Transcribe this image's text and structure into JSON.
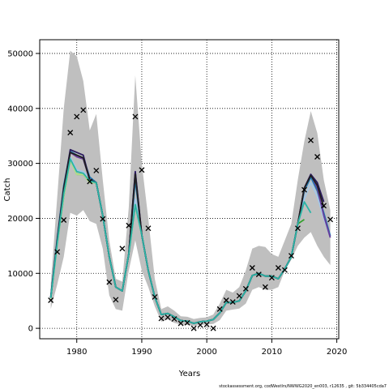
{
  "chart_data": {
    "type": "line",
    "xlabel": "Years",
    "ylabel": "Catch",
    "xlim": [
      1974.3,
      2020.3
    ],
    "ylim": [
      -1900,
      52500
    ],
    "xticks": [
      1980,
      1990,
      2000,
      2010,
      2020
    ],
    "yticks": [
      0,
      10000,
      20000,
      30000,
      40000,
      50000
    ],
    "grid": true,
    "footer": "stockassessment.org, codWestIrs/NWWG2020_en003, r12635 , git: 5b334405cda7",
    "band": {
      "x": [
        1976,
        1977,
        1978,
        1979,
        1980,
        1981,
        1982,
        1983,
        1984,
        1985,
        1986,
        1987,
        1988,
        1989,
        1990,
        1991,
        1992,
        1993,
        1994,
        1995,
        1996,
        1997,
        1998,
        1999,
        2000,
        2001,
        2002,
        2003,
        2004,
        2005,
        2006,
        2007,
        2008,
        2009,
        2010,
        2011,
        2012,
        2013,
        2014,
        2015,
        2016,
        2017,
        2018,
        2019
      ],
      "upper": [
        8000,
        24000,
        40000,
        50500,
        49500,
        45000,
        36000,
        39000,
        27000,
        16000,
        9000,
        8500,
        22000,
        46000,
        30000,
        20000,
        9000,
        3500,
        4000,
        3200,
        2200,
        2100,
        1700,
        1900,
        2000,
        2500,
        4500,
        7000,
        6500,
        7500,
        10500,
        14500,
        15000,
        14800,
        13500,
        13000,
        16000,
        19000,
        27000,
        34000,
        39500,
        35500,
        27000,
        21500
      ],
      "lower": [
        3500,
        8000,
        13000,
        21000,
        20500,
        21500,
        19500,
        19000,
        14500,
        6000,
        3500,
        3200,
        10500,
        16000,
        10500,
        7500,
        4000,
        1200,
        1600,
        1000,
        700,
        600,
        400,
        600,
        700,
        800,
        1500,
        3200,
        3400,
        3600,
        4500,
        7000,
        7500,
        7000,
        7000,
        7500,
        10500,
        12500,
        15000,
        16500,
        17500,
        15000,
        13000,
        11500
      ]
    },
    "series": [
      {
        "color": "#a3c7e8",
        "values": [
          5500,
          15500,
          24500,
          31200,
          28800,
          28500,
          27500,
          26500,
          20500,
          13000,
          7500,
          6800,
          13500,
          23500,
          17000,
          10500,
          5700,
          2500,
          2700,
          2100,
          1400,
          1300,
          900,
          1200,
          1300,
          1600,
          2800,
          4700,
          4700,
          5000,
          6800,
          9600,
          10000,
          9500,
          9500,
          9000,
          10800,
          13000,
          19000,
          23500,
          26500,
          24000,
          20000,
          16500
        ]
      },
      {
        "color": "#1f78b4",
        "values": [
          5800,
          16500,
          26000,
          32200,
          31500,
          31000,
          27500,
          26500,
          20500,
          13000,
          7500,
          6800,
          13500,
          27000,
          17000,
          10500,
          5700,
          2500,
          2700,
          2100,
          1400,
          1300,
          900,
          1200,
          1300,
          1600,
          2800,
          4700,
          4700,
          5000,
          6800,
          9600,
          10000,
          9500,
          9500,
          9000,
          10800,
          13000,
          19000,
          25000,
          27500,
          25000,
          21000,
          16800
        ]
      },
      {
        "color": "#33a02c",
        "values": [
          5500,
          15500,
          24000,
          30700,
          28000,
          28000,
          26500,
          26500,
          20500,
          13000,
          7500,
          6800,
          13500,
          22500,
          17000,
          10500,
          5700,
          2500,
          2700,
          2100,
          1400,
          1300,
          900,
          1200,
          1300,
          1600,
          2800,
          4700,
          4700,
          5000,
          6800,
          9600,
          10000,
          9500,
          9500,
          9000,
          10800,
          13000,
          19000,
          19800,
          null,
          null,
          null,
          null
        ]
      },
      {
        "color": "#b2df8a",
        "values": [
          5400,
          15300,
          24000,
          30500,
          28000,
          28000,
          26500,
          26500,
          20500,
          13000,
          7500,
          6800,
          13500,
          22500,
          17000,
          10500,
          5700,
          2500,
          2700,
          2100,
          1400,
          1300,
          900,
          1200,
          1300,
          1600,
          2800,
          4700,
          4700,
          5000,
          6800,
          9600,
          10000,
          9500,
          9500,
          9000,
          10800,
          13000,
          19000,
          null,
          null,
          null,
          null,
          null
        ]
      },
      {
        "color": "#6a3d9a",
        "values": [
          5600,
          16000,
          25500,
          32000,
          31200,
          30800,
          27000,
          26500,
          20500,
          13000,
          7500,
          6800,
          13500,
          28500,
          17000,
          10500,
          5700,
          2500,
          2700,
          2100,
          1400,
          1300,
          900,
          1200,
          1300,
          1600,
          2800,
          4700,
          4700,
          5000,
          6800,
          9600,
          10000,
          9500,
          9500,
          9000,
          10800,
          13000,
          19000,
          25500,
          28000,
          25500,
          20500,
          16500
        ]
      },
      {
        "color": "#2a1a5e",
        "values": [
          5600,
          16000,
          25500,
          32500,
          32000,
          31500,
          27000,
          26500,
          20500,
          13000,
          7500,
          6800,
          13500,
          28500,
          17000,
          10500,
          5700,
          2500,
          2700,
          2100,
          1400,
          1300,
          900,
          1200,
          1300,
          1600,
          2800,
          4700,
          4700,
          5000,
          6800,
          9600,
          10000,
          9500,
          9500,
          9000,
          10800,
          13000,
          19000,
          25500,
          28000,
          26500,
          23000,
          null
        ]
      },
      {
        "color": "#1f1f1f",
        "values": [
          5600,
          16000,
          25500,
          32000,
          31500,
          31000,
          27000,
          26500,
          20500,
          13000,
          7500,
          6800,
          13500,
          28000,
          17000,
          10500,
          5700,
          2500,
          2700,
          2100,
          1400,
          1300,
          900,
          1200,
          1300,
          1600,
          2800,
          4700,
          4700,
          5000,
          6800,
          9600,
          10000,
          9500,
          9500,
          9000,
          10800,
          13000,
          19000,
          25500,
          27800,
          26000,
          22000,
          null
        ]
      },
      {
        "color": "#2ab3a6",
        "values": [
          5500,
          15500,
          24500,
          30800,
          28500,
          28200,
          26800,
          26500,
          20500,
          13000,
          7500,
          6800,
          13500,
          22500,
          17000,
          10500,
          5700,
          2500,
          2700,
          2100,
          1400,
          1300,
          900,
          1200,
          1300,
          1600,
          2800,
          4700,
          4700,
          5000,
          6800,
          9600,
          10000,
          9500,
          9500,
          9000,
          10800,
          13000,
          19000,
          23000,
          21000,
          null,
          null,
          null
        ]
      }
    ],
    "observations": {
      "x": [
        1976,
        1977,
        1978,
        1979,
        1980,
        1981,
        1982,
        1983,
        1984,
        1985,
        1986,
        1987,
        1988,
        1989,
        1990,
        1991,
        1992,
        1993,
        1994,
        1995,
        1996,
        1997,
        1998,
        1999,
        2000,
        2001,
        2002,
        2003,
        2004,
        2005,
        2006,
        2007,
        2008,
        2009,
        2010,
        2011,
        2012,
        2013,
        2014,
        2015,
        2016,
        2017,
        2018,
        2019
      ],
      "y": [
        5100,
        13900,
        19700,
        35600,
        38500,
        39700,
        26700,
        28700,
        19900,
        8400,
        5200,
        14500,
        18700,
        38500,
        28800,
        18200,
        5700,
        1800,
        2000,
        1700,
        900,
        1000,
        0,
        600,
        700,
        0,
        3500,
        5100,
        4800,
        5900,
        7200,
        11000,
        9800,
        7500,
        9200,
        11000,
        10600,
        13200,
        18200,
        25200,
        34200,
        31200,
        22300,
        19800
      ]
    }
  }
}
